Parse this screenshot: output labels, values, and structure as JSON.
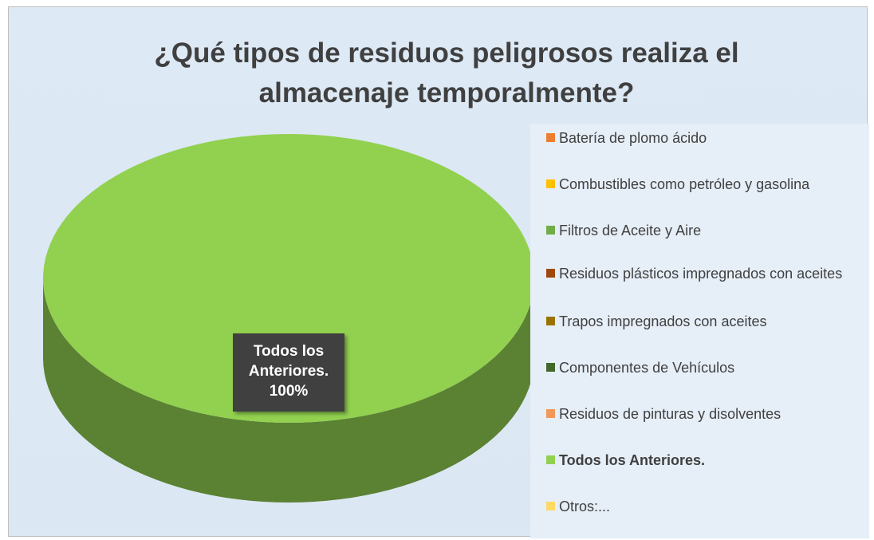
{
  "chart_data": {
    "type": "pie3d",
    "title": "¿Qué tipos de residuos peligrosos realiza el almacenaje temporalmente?",
    "categories": [
      "Batería de plomo ácido",
      "Combustibles como petróleo y gasolina",
      "Filtros de Aceite y Aire",
      "Residuos plásticos impregnados con aceites",
      "Trapos impregnados con aceites",
      "Componentes de Vehículos",
      "Residuos de pinturas y disolventes",
      "Todos los Anteriores.",
      "Otros:..."
    ],
    "values": [
      0,
      0,
      0,
      0,
      0,
      0,
      0,
      100,
      0
    ],
    "value_labels": [
      null,
      null,
      null,
      null,
      null,
      null,
      null,
      "100%",
      null
    ],
    "colors": [
      "#ED7D31",
      "#FFC000",
      "#70AD47",
      "#9E480E",
      "#997300",
      "#43682B",
      "#F1975A",
      "#92D050",
      "#FFD966"
    ],
    "legend": "right"
  }
}
